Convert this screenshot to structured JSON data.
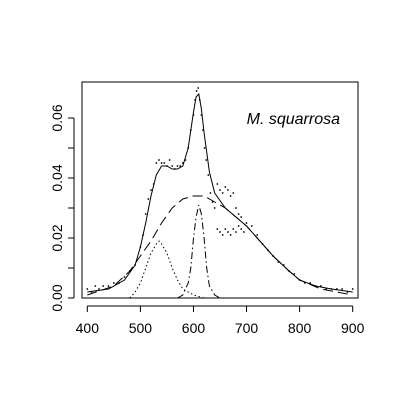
{
  "chart_data": {
    "type": "line",
    "title": "",
    "xlabel": "",
    "ylabel": "",
    "xlim": [
      390,
      910
    ],
    "ylim": [
      0,
      0.072
    ],
    "x_ticks": [
      400,
      500,
      600,
      700,
      800,
      900
    ],
    "x_tick_labels": [
      "400",
      "500",
      "600",
      "700",
      "800",
      "900"
    ],
    "y_ticks": [
      0.0,
      0.02,
      0.04,
      0.06
    ],
    "y_tick_labels": [
      "0.00",
      "0.02",
      "0.04",
      "0.06"
    ],
    "y_minor_ticks": [
      0.01,
      0.03,
      0.05
    ],
    "grid": false,
    "legend": "none",
    "annotation": "M. squarrosa",
    "series": [
      {
        "style": "solid",
        "x": [
          400,
          440,
          470,
          490,
          500,
          510,
          520,
          530,
          540,
          550,
          560,
          570,
          580,
          590,
          600,
          605,
          610,
          615,
          620,
          630,
          640,
          660,
          680,
          700,
          720,
          750,
          780,
          800,
          830,
          860,
          900
        ],
        "y": [
          0.002,
          0.003,
          0.006,
          0.011,
          0.017,
          0.025,
          0.034,
          0.041,
          0.044,
          0.044,
          0.043,
          0.043,
          0.044,
          0.05,
          0.062,
          0.067,
          0.068,
          0.063,
          0.055,
          0.042,
          0.035,
          0.03,
          0.027,
          0.024,
          0.02,
          0.014,
          0.009,
          0.006,
          0.004,
          0.003,
          0.002
        ]
      },
      {
        "style": "longdash",
        "x": [
          400,
          450,
          480,
          500,
          520,
          540,
          560,
          580,
          600,
          610,
          620,
          640,
          660,
          680,
          700,
          720,
          750,
          780,
          800,
          840,
          870,
          900
        ],
        "y": [
          0.001,
          0.004,
          0.009,
          0.014,
          0.019,
          0.025,
          0.03,
          0.033,
          0.034,
          0.034,
          0.034,
          0.032,
          0.03,
          0.027,
          0.024,
          0.02,
          0.014,
          0.009,
          0.006,
          0.003,
          0.002,
          0.001
        ]
      },
      {
        "style": "dotted",
        "x": [
          480,
          490,
          500,
          510,
          520,
          530,
          535,
          540,
          550,
          560,
          570,
          580,
          590,
          600,
          620,
          640
        ],
        "y": [
          0.0,
          0.002,
          0.005,
          0.01,
          0.015,
          0.018,
          0.019,
          0.018,
          0.015,
          0.01,
          0.006,
          0.003,
          0.002,
          0.001,
          0.0,
          0.0
        ]
      },
      {
        "style": "dashdot",
        "x": [
          570,
          580,
          590,
          595,
          600,
          605,
          610,
          615,
          620,
          625,
          630,
          640,
          650
        ],
        "y": [
          0.0,
          0.001,
          0.005,
          0.01,
          0.02,
          0.027,
          0.031,
          0.028,
          0.02,
          0.01,
          0.004,
          0.001,
          0.0
        ]
      }
    ],
    "scatter": {
      "x": [
        400,
        408,
        415,
        422,
        430,
        440,
        450,
        460,
        470,
        480,
        490,
        500,
        505,
        510,
        515,
        520,
        525,
        530,
        535,
        540,
        545,
        550,
        555,
        560,
        565,
        570,
        575,
        580,
        585,
        590,
        595,
        600,
        603,
        606,
        609,
        612,
        615,
        618,
        621,
        624,
        628,
        632,
        636,
        640,
        645,
        650,
        655,
        660,
        665,
        670,
        675,
        680,
        685,
        690,
        700,
        710,
        720,
        730,
        740,
        750,
        760,
        770,
        780,
        790,
        800,
        810,
        820,
        830,
        840,
        850,
        860,
        870,
        880,
        890,
        900,
        645,
        650,
        655,
        660,
        665,
        670,
        675,
        680,
        685,
        690,
        695
      ],
      "y": [
        0.003,
        0.002,
        0.004,
        0.003,
        0.004,
        0.004,
        0.005,
        0.005,
        0.007,
        0.009,
        0.011,
        0.017,
        0.021,
        0.028,
        0.033,
        0.036,
        0.038,
        0.045,
        0.046,
        0.045,
        0.045,
        0.044,
        0.046,
        0.044,
        0.043,
        0.044,
        0.044,
        0.045,
        0.046,
        0.05,
        0.056,
        0.061,
        0.066,
        0.069,
        0.07,
        0.066,
        0.061,
        0.056,
        0.05,
        0.046,
        0.041,
        0.035,
        0.032,
        0.03,
        0.038,
        0.036,
        0.035,
        0.037,
        0.036,
        0.034,
        0.035,
        0.03,
        0.028,
        0.027,
        0.025,
        0.024,
        0.021,
        0.018,
        0.016,
        0.014,
        0.012,
        0.011,
        0.009,
        0.008,
        0.006,
        0.005,
        0.005,
        0.004,
        0.004,
        0.003,
        0.003,
        0.003,
        0.003,
        0.002,
        0.003,
        0.023,
        0.022,
        0.021,
        0.023,
        0.022,
        0.021,
        0.023,
        0.022,
        0.024,
        0.023,
        0.022
      ]
    }
  }
}
